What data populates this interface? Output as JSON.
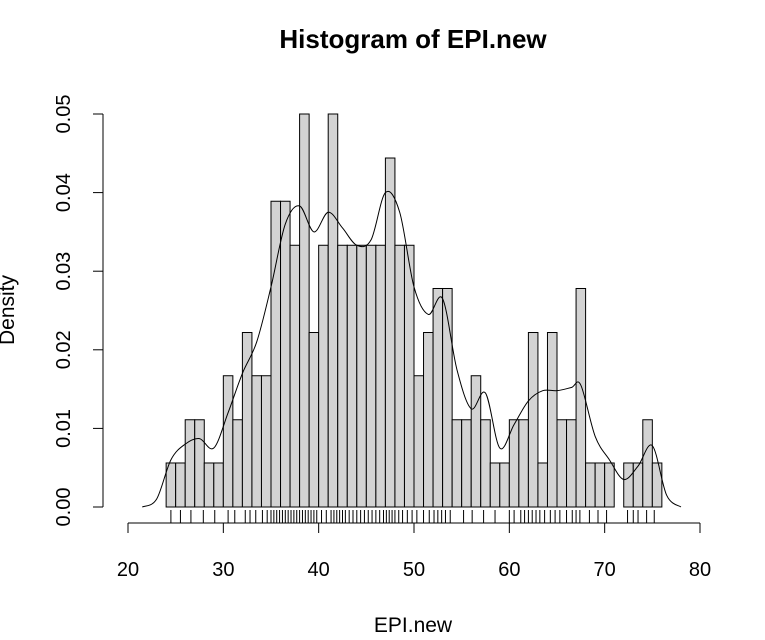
{
  "chart_data": {
    "type": "histogram",
    "title": "Histogram of EPI.new",
    "xlabel": "EPI.new",
    "ylabel": "Density",
    "xlim": [
      20,
      80
    ],
    "ylim": [
      0,
      0.05
    ],
    "x_ticks": [
      "20",
      "30",
      "40",
      "50",
      "60",
      "70",
      "80"
    ],
    "y_ticks": [
      "0.00",
      "0.01",
      "0.02",
      "0.03",
      "0.04",
      "0.05"
    ],
    "bar_fill": "#d3d3d3",
    "bin_width": 1,
    "bins_start": [
      24,
      25,
      26,
      27,
      28,
      29,
      30,
      31,
      32,
      33,
      34,
      35,
      36,
      37,
      38,
      39,
      40,
      41,
      42,
      43,
      44,
      45,
      46,
      47,
      48,
      49,
      50,
      51,
      52,
      53,
      54,
      55,
      56,
      57,
      58,
      59,
      60,
      61,
      62,
      63,
      64,
      65,
      66,
      67,
      68,
      69,
      70,
      71,
      72,
      73,
      74,
      75
    ],
    "densities": [
      0.0056,
      0.0056,
      0.0111,
      0.0111,
      0.0056,
      0.0056,
      0.0167,
      0.0111,
      0.0222,
      0.0167,
      0.0167,
      0.0389,
      0.0389,
      0.0333,
      0.05,
      0.0222,
      0.0333,
      0.05,
      0.0333,
      0.0333,
      0.0333,
      0.0333,
      0.0333,
      0.0444,
      0.0333,
      0.0333,
      0.0167,
      0.0222,
      0.0278,
      0.0278,
      0.0111,
      0.0111,
      0.0167,
      0.0111,
      0.0056,
      0.0056,
      0.0111,
      0.0111,
      0.0222,
      0.0056,
      0.0222,
      0.0111,
      0.0111,
      0.0278,
      0.0056,
      0.0056,
      0.0056,
      0,
      0.0056,
      0.0056,
      0.0111,
      0.0056
    ],
    "density_curve": {
      "x": [
        21.5,
        23,
        24.5,
        26,
        27.5,
        29,
        30.5,
        32,
        33.5,
        35,
        36.5,
        38,
        39.5,
        41,
        42.5,
        44,
        45.5,
        47,
        48.5,
        50,
        51.5,
        53,
        54.5,
        56,
        57.5,
        59,
        60.5,
        62,
        63.5,
        65,
        66.5,
        67.5,
        69,
        70.5,
        72,
        73.5,
        75,
        76.5,
        78
      ],
      "y": [
        0,
        0.001,
        0.006,
        0.008,
        0.0087,
        0.0075,
        0.012,
        0.017,
        0.021,
        0.028,
        0.036,
        0.0383,
        0.035,
        0.0375,
        0.0355,
        0.0333,
        0.034,
        0.04,
        0.0375,
        0.028,
        0.0245,
        0.0265,
        0.0175,
        0.0125,
        0.0145,
        0.0075,
        0.0105,
        0.0135,
        0.0148,
        0.0148,
        0.0152,
        0.0155,
        0.009,
        0.006,
        0.0035,
        0.0052,
        0.0078,
        0.0015,
        0
      ]
    },
    "rug_x": [
      24.5,
      25.5,
      26.6,
      27.9,
      29.1,
      30.5,
      31.2,
      32.3,
      32.8,
      33.4,
      34.1,
      34.6,
      35.0,
      35.3,
      35.6,
      35.9,
      36.2,
      36.5,
      36.8,
      37.1,
      37.4,
      37.7,
      38.0,
      38.3,
      38.6,
      38.9,
      39.2,
      39.5,
      39.8,
      40.3,
      40.8,
      41.3,
      41.6,
      41.9,
      42.2,
      42.5,
      42.8,
      43.2,
      43.6,
      44.0,
      44.4,
      44.8,
      45.2,
      45.6,
      46.0,
      46.4,
      46.8,
      47.1,
      47.4,
      47.7,
      48.0,
      48.4,
      48.8,
      49.3,
      49.8,
      50.3,
      51.0,
      51.6,
      52.1,
      52.5,
      52.9,
      53.3,
      53.8,
      55.2,
      56.1,
      57.3,
      58.5,
      60.0,
      60.5,
      61.2,
      61.6,
      62.0,
      62.4,
      62.8,
      63.2,
      63.7,
      64.3,
      64.8,
      65.3,
      66.0,
      66.6,
      67.0,
      67.4,
      68.4,
      69.3,
      70.2,
      72.4,
      73.0,
      73.5,
      74.4,
      75.2
    ]
  }
}
